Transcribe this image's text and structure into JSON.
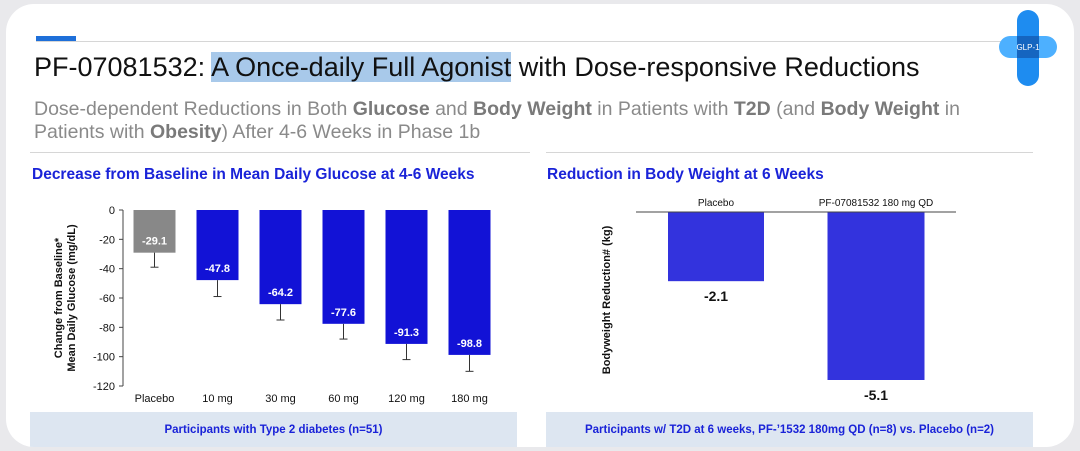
{
  "header": {
    "title_pre": "PF-07081532: ",
    "title_highlight": "A Once-daily Full Agonist",
    "title_post": " with Dose-responsive Reductions",
    "subtitle": {
      "p1": "Dose-dependent Reductions in Both ",
      "b1": "Glucose",
      "p2": " and ",
      "b2": "Body Weight",
      "p3": " in Patients with ",
      "b3": "T2D",
      "p4": " (and ",
      "b4": "Body Weight",
      "p5": " in Patients with ",
      "b5": "Obesity",
      "p6": ") After 4-6 Weeks in Phase 1b"
    },
    "logo_text": "GLP-1"
  },
  "colors": {
    "bar_blue": "#1212d6",
    "bar_grey": "#888888",
    "weight_blue": "#3333dd",
    "accent": "#1a23d8",
    "footer_bg": "#dde6f1"
  },
  "left_panel": {
    "title": "Decrease from Baseline in Mean Daily Glucose at 4-6 Weeks",
    "footer": "Participants with Type 2 diabetes (n=51)"
  },
  "right_panel": {
    "title": "Reduction in Body Weight at 6 Weeks",
    "footer": "Participants w/ T2D at 6 weeks, PF-’1532 180mg QD (n=8) vs. Placebo (n=2)"
  },
  "chart_data": [
    {
      "type": "bar",
      "title": "Decrease from Baseline in Mean Daily Glucose at 4-6 Weeks",
      "ylabel": "Change from Baseline* Mean Daily Glucose (mg/dL)",
      "ylabel_lines": [
        "Change from Baseline*",
        "Mean Daily Glucose (mg/dL)"
      ],
      "categories": [
        "Placebo",
        "10 mg",
        "30 mg",
        "60 mg",
        "120 mg",
        "180 mg"
      ],
      "values": [
        -29.1,
        -47.8,
        -64.2,
        -77.6,
        -91.3,
        -98.8
      ],
      "value_labels": [
        "-29.1",
        "-47.8",
        "-64.2",
        "-77.6",
        "-91.3",
        "-98.8"
      ],
      "error_low": [
        -39,
        -59,
        -75,
        -88,
        -102,
        -110
      ],
      "bar_colors": [
        "#888888",
        "#1212d6",
        "#1212d6",
        "#1212d6",
        "#1212d6",
        "#1212d6"
      ],
      "ylim": [
        -120,
        0
      ],
      "yticks": [
        0,
        -20,
        -40,
        -60,
        -80,
        -100,
        -120
      ],
      "grid": false
    },
    {
      "type": "bar",
      "title": "Reduction in Body Weight at 6 Weeks",
      "ylabel": "Bodyweight Reduction# (kg)",
      "categories": [
        "Placebo",
        "PF-07081532 180 mg QD"
      ],
      "values": [
        -2.1,
        -5.1
      ],
      "value_labels": [
        "-2.1",
        "-5.1"
      ],
      "ylim": [
        -5.1,
        0
      ],
      "grid": false
    }
  ]
}
